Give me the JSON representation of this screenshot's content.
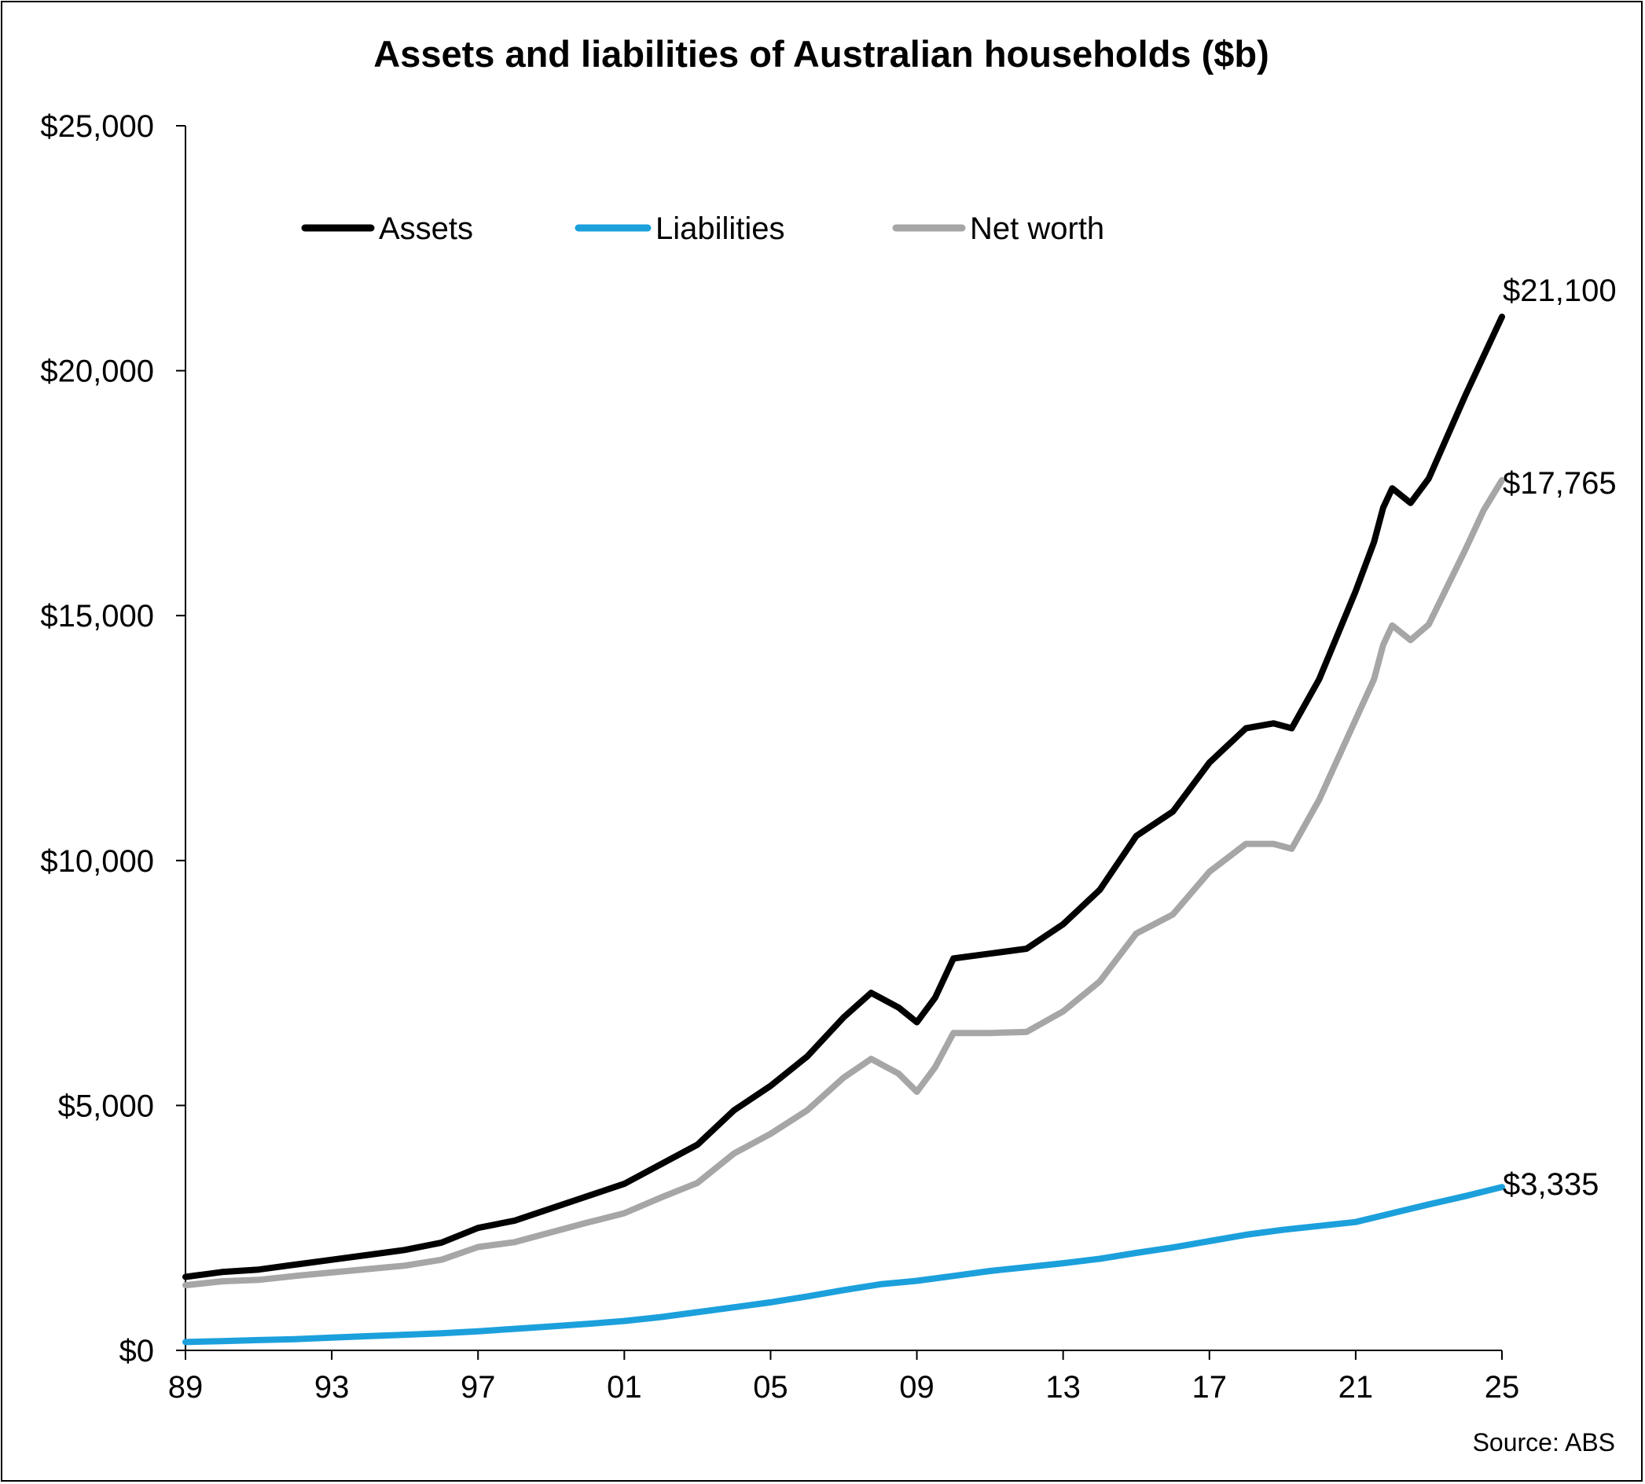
{
  "chart_data": {
    "type": "line",
    "title": "Assets and liabilities of Australian households ($b)",
    "xlabel": "",
    "ylabel": "",
    "x_tick_labels": [
      "89",
      "93",
      "97",
      "01",
      "05",
      "09",
      "13",
      "17",
      "21",
      "25"
    ],
    "x_tick_years": [
      1989,
      1993,
      1997,
      2001,
      2005,
      2009,
      2013,
      2017,
      2021,
      2025
    ],
    "xlim": [
      1989,
      2025
    ],
    "ylim": [
      0,
      25000
    ],
    "y_tick_values": [
      0,
      5000,
      10000,
      15000,
      20000,
      25000
    ],
    "y_tick_labels": [
      "$0",
      "$5,000",
      "$10,000",
      "$15,000",
      "$20,000",
      "$25,000"
    ],
    "grid": false,
    "legend_position": "top-left",
    "series": [
      {
        "name": "Assets",
        "color": "#000000",
        "end_label": "$21,100",
        "x": [
          1989,
          1990,
          1991,
          1992,
          1993,
          1994,
          1995,
          1996,
          1997,
          1998,
          1999,
          2000,
          2001,
          2002,
          2003,
          2004,
          2005,
          2006,
          2007,
          2007.75,
          2008.5,
          2009,
          2009.5,
          2010,
          2011,
          2012,
          2013,
          2014,
          2015,
          2016,
          2017,
          2018,
          2018.75,
          2019.25,
          2020,
          2021,
          2021.5,
          2021.75,
          2022,
          2022.5,
          2023,
          2024,
          2024.5,
          2025
        ],
        "values": [
          1500,
          1600,
          1650,
          1750,
          1850,
          1950,
          2050,
          2200,
          2500,
          2650,
          2900,
          3150,
          3400,
          3800,
          4200,
          4900,
          5400,
          6000,
          6800,
          7300,
          7000,
          6700,
          7200,
          8000,
          8100,
          8200,
          8700,
          9400,
          10500,
          11000,
          12000,
          12700,
          12800,
          12700,
          13700,
          15500,
          16500,
          17200,
          17600,
          17300,
          17800,
          19500,
          20300,
          21100
        ]
      },
      {
        "name": "Liabilities",
        "color": "#1ba0dc",
        "end_label": "$3,335",
        "x": [
          1989,
          1990,
          1991,
          1992,
          1993,
          1994,
          1995,
          1996,
          1997,
          1998,
          1999,
          2000,
          2001,
          2002,
          2003,
          2004,
          2005,
          2006,
          2007,
          2008,
          2009,
          2010,
          2011,
          2012,
          2013,
          2014,
          2015,
          2016,
          2017,
          2018,
          2019,
          2020,
          2021,
          2022,
          2023,
          2024,
          2025
        ],
        "values": [
          170,
          190,
          210,
          230,
          260,
          290,
          320,
          350,
          390,
          440,
          490,
          540,
          600,
          680,
          780,
          880,
          980,
          1100,
          1230,
          1350,
          1420,
          1520,
          1620,
          1700,
          1780,
          1870,
          1990,
          2100,
          2230,
          2360,
          2460,
          2540,
          2620,
          2800,
          2980,
          3150,
          3335
        ]
      },
      {
        "name": "Net worth",
        "color": "#a6a6a6",
        "end_label": "$17,765",
        "x": [
          1989,
          1990,
          1991,
          1992,
          1993,
          1994,
          1995,
          1996,
          1997,
          1998,
          1999,
          2000,
          2001,
          2002,
          2003,
          2004,
          2005,
          2006,
          2007,
          2007.75,
          2008.5,
          2009,
          2009.5,
          2010,
          2011,
          2012,
          2013,
          2014,
          2015,
          2016,
          2017,
          2018,
          2018.75,
          2019.25,
          2020,
          2021,
          2021.5,
          2021.75,
          2022,
          2022.5,
          2023,
          2024,
          2024.5,
          2025
        ],
        "values": [
          1330,
          1410,
          1440,
          1520,
          1590,
          1660,
          1730,
          1850,
          2110,
          2210,
          2410,
          2610,
          2800,
          3120,
          3420,
          4020,
          4420,
          4900,
          5570,
          5950,
          5650,
          5280,
          5780,
          6480,
          6480,
          6500,
          6920,
          7530,
          8510,
          8900,
          9770,
          10340,
          10340,
          10240,
          11240,
          12880,
          13700,
          14400,
          14800,
          14500,
          14820,
          16350,
          17150,
          17765
        ]
      }
    ]
  },
  "source": "Source: ABS"
}
